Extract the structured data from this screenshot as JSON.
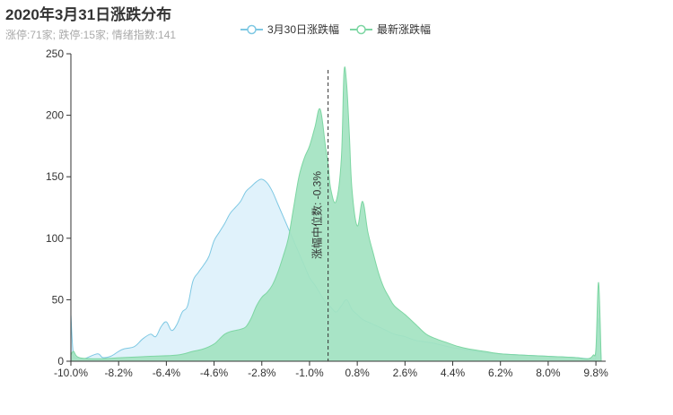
{
  "title": "2020年3月31日涨跌分布",
  "subtitle": "涨停:71家; 跌停:15家; 情绪指数:141",
  "legend": [
    {
      "name": "3月30日涨跌幅",
      "color": "#7ec8e3"
    },
    {
      "name": "最新涨跌幅",
      "color": "#7dd6a3"
    }
  ],
  "colors": {
    "prev_line": "#7ec8e3",
    "prev_fill": "#e0f2fb",
    "latest_line": "#7dd6a3",
    "latest_fill": "#a3e3c1",
    "axis": "#333333",
    "median_line": "#333333"
  },
  "chart_data": {
    "type": "area",
    "title": "2020年3月31日涨跌分布",
    "subtitle": "涨停:71家; 跌停:15家; 情绪指数:141",
    "x_ticks": [
      "-10.0%",
      "-8.2%",
      "-6.4%",
      "-4.6%",
      "-2.8%",
      "-1.0%",
      "0.8%",
      "2.6%",
      "4.4%",
      "6.2%",
      "8.0%",
      "9.8%"
    ],
    "y_ticks": [
      0,
      50,
      100,
      150,
      200,
      250
    ],
    "xlim": [
      -10.0,
      10.0
    ],
    "ylim": [
      0,
      250
    ],
    "median_label": "涨幅中位数: -0.3%",
    "median_x": -0.3,
    "series": [
      {
        "name": "3月30日涨跌幅",
        "x": [
          -10.0,
          -9.9,
          -9.7,
          -9.5,
          -9.0,
          -8.8,
          -8.5,
          -8.2,
          -8.0,
          -7.6,
          -7.3,
          -7.0,
          -6.8,
          -6.6,
          -6.4,
          -6.2,
          -6.0,
          -5.8,
          -5.6,
          -5.4,
          -5.2,
          -5.0,
          -4.8,
          -4.6,
          -4.4,
          -4.2,
          -4.0,
          -3.8,
          -3.6,
          -3.4,
          -3.2,
          -3.0,
          -2.8,
          -2.6,
          -2.4,
          -2.2,
          -2.0,
          -1.8,
          -1.6,
          -1.4,
          -1.2,
          -1.0,
          -0.8,
          -0.6,
          -0.4,
          -0.2,
          0.0,
          0.2,
          0.4,
          0.6,
          0.8,
          1.0,
          1.4,
          1.8,
          2.2,
          2.6,
          3.0,
          3.6,
          4.0,
          4.4,
          5.0,
          5.6,
          6.2,
          7.0,
          8.0,
          9.0,
          9.5,
          9.7,
          9.8,
          9.9,
          10.0
        ],
        "y": [
          38,
          5,
          3,
          2,
          6,
          3,
          4,
          8,
          10,
          12,
          18,
          22,
          20,
          28,
          32,
          25,
          30,
          40,
          45,
          65,
          72,
          78,
          85,
          98,
          105,
          112,
          120,
          125,
          130,
          138,
          142,
          146,
          148,
          145,
          138,
          128,
          118,
          108,
          98,
          88,
          78,
          68,
          62,
          55,
          48,
          44,
          40,
          45,
          50,
          42,
          38,
          34,
          30,
          26,
          22,
          20,
          17,
          15,
          13,
          11,
          9,
          7,
          6,
          5,
          4,
          3,
          2,
          2,
          3,
          35,
          0
        ]
      },
      {
        "name": "最新涨跌幅",
        "x": [
          -10.0,
          -9.9,
          -9.7,
          -9.0,
          -8.0,
          -7.0,
          -6.0,
          -5.4,
          -5.0,
          -4.6,
          -4.4,
          -4.2,
          -4.0,
          -3.8,
          -3.6,
          -3.4,
          -3.2,
          -3.0,
          -2.8,
          -2.6,
          -2.4,
          -2.2,
          -2.0,
          -1.8,
          -1.6,
          -1.4,
          -1.2,
          -1.0,
          -0.8,
          -0.6,
          -0.4,
          -0.3,
          -0.2,
          0.0,
          0.2,
          0.3,
          0.4,
          0.5,
          0.6,
          0.8,
          1.0,
          1.2,
          1.4,
          1.6,
          1.8,
          2.0,
          2.2,
          2.6,
          3.0,
          3.4,
          3.8,
          4.2,
          4.6,
          5.0,
          5.6,
          6.2,
          7.0,
          8.0,
          9.0,
          9.5,
          9.7,
          9.8,
          9.9,
          10.0
        ],
        "y": [
          5,
          8,
          3,
          2,
          3,
          4,
          5,
          8,
          10,
          14,
          18,
          22,
          24,
          25,
          26,
          28,
          35,
          45,
          52,
          56,
          62,
          72,
          85,
          100,
          125,
          150,
          165,
          175,
          190,
          205,
          175,
          160,
          140,
          130,
          165,
          235,
          225,
          185,
          140,
          110,
          130,
          105,
          88,
          72,
          60,
          52,
          45,
          38,
          30,
          22,
          18,
          15,
          12,
          10,
          8,
          6,
          5,
          4,
          3,
          2,
          5,
          10,
          64,
          0
        ]
      }
    ]
  }
}
